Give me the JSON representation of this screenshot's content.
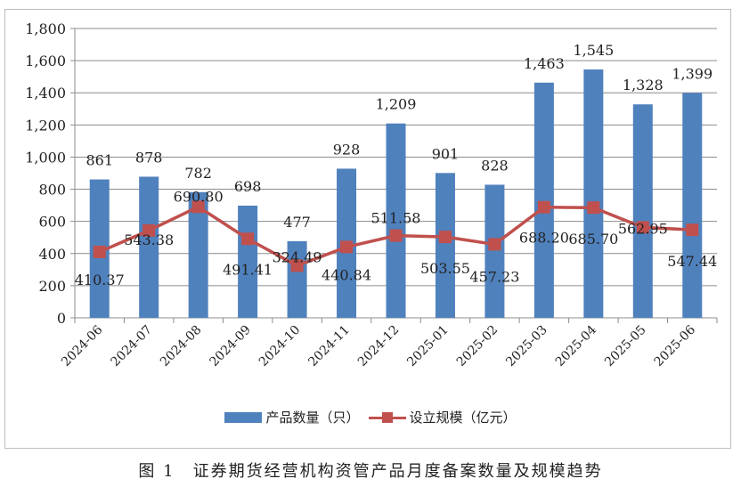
{
  "chart_data": {
    "type": "bar+line",
    "categories": [
      "2024-06",
      "2024-07",
      "2024-08",
      "2024-09",
      "2024-10",
      "2024-11",
      "2024-12",
      "2025-01",
      "2025-02",
      "2025-03",
      "2025-04",
      "2025-05",
      "2025-06"
    ],
    "series": [
      {
        "name": "产品数量（只）",
        "type": "bar",
        "color": "#4f81bd",
        "values": [
          861,
          878,
          782,
          698,
          477,
          928,
          1209,
          901,
          828,
          1463,
          1545,
          1328,
          1399
        ],
        "labels": [
          "861",
          "878",
          "782",
          "698",
          "477",
          "928",
          "1,209",
          "901",
          "828",
          "1,463",
          "1,545",
          "1,328",
          "1,399"
        ]
      },
      {
        "name": "设立规模（亿元）",
        "type": "line",
        "color": "#c0504d",
        "values": [
          410.37,
          543.38,
          690.8,
          491.41,
          324.49,
          440.84,
          511.58,
          503.55,
          457.23,
          688.2,
          685.7,
          562.95,
          547.44
        ],
        "labels": [
          "410.37",
          "543.38",
          "690.80",
          "491.41",
          "324.49",
          "440.84",
          "511.58",
          "503.55",
          "457.23",
          "688.20",
          "685.70",
          "562.95",
          "547.44"
        ]
      }
    ],
    "ylim": [
      0,
      1800
    ],
    "yticks": [
      0,
      200,
      400,
      600,
      800,
      1000,
      1200,
      1400,
      1600,
      1800
    ],
    "ytick_labels": [
      "0",
      "200",
      "400",
      "600",
      "800",
      "1,000",
      "1,200",
      "1,400",
      "1,600",
      "1,800"
    ],
    "grid": true,
    "legend": "bottom"
  },
  "caption": "图 1　证券期货经营机构资管产品月度备案数量及规模趋势"
}
